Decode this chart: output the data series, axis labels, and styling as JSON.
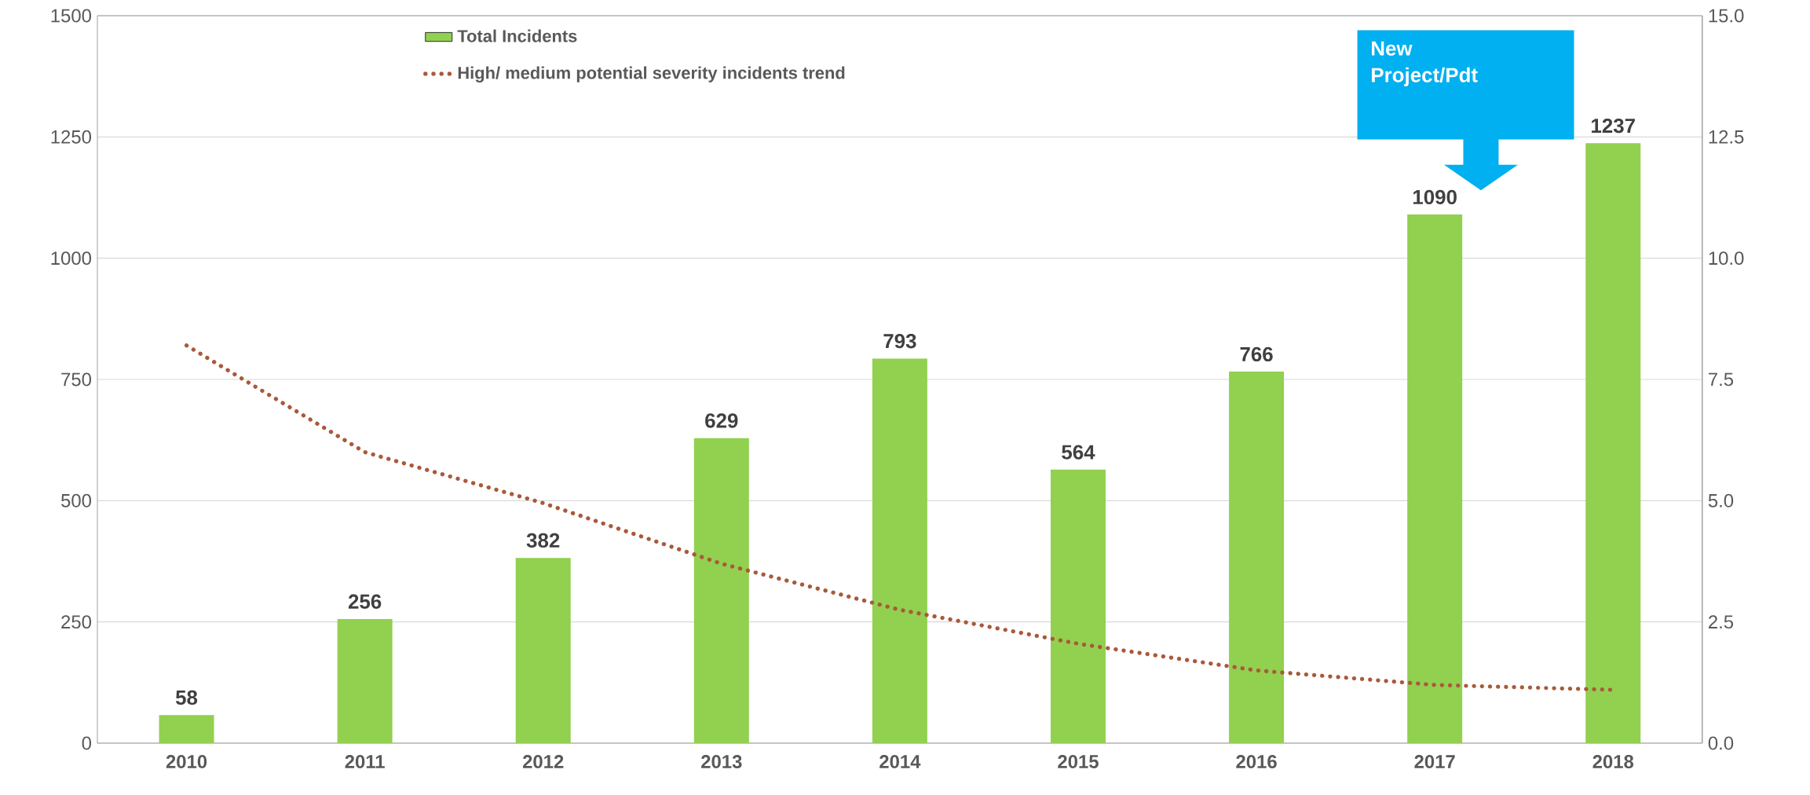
{
  "chart_data": {
    "type": "bar",
    "categories": [
      "2010",
      "2011",
      "2012",
      "2013",
      "2014",
      "2015",
      "2016",
      "2017",
      "2018"
    ],
    "series": [
      {
        "name": "Total Incidents",
        "type": "bar",
        "color": "#92d050",
        "values": [
          58,
          256,
          382,
          629,
          793,
          564,
          766,
          1090,
          1237
        ],
        "value_labels": [
          "58",
          "256",
          "382",
          "629",
          "793",
          "564",
          "766",
          "1090",
          "1237"
        ]
      },
      {
        "name": "High/ medium potential severity incidents trend",
        "type": "line",
        "axis": "y2",
        "color": "#a9593a",
        "line_style": "dotted",
        "marker": "none",
        "values": [
          8.2,
          6.0,
          4.95,
          3.7,
          2.75,
          2.05,
          1.5,
          1.2,
          1.1
        ]
      }
    ],
    "ylim": [
      0,
      1500
    ],
    "yticks": [
      0,
      250,
      500,
      750,
      1000,
      1250,
      1500
    ],
    "y2lim": [
      0,
      15
    ],
    "y2ticks": [
      {
        "value": 0,
        "label": "0.0"
      },
      {
        "value": 2.5,
        "label": "2.5"
      },
      {
        "value": 5,
        "label": "5.0"
      },
      {
        "value": 7.5,
        "label": "7.5"
      },
      {
        "value": 10,
        "label": "10.0"
      },
      {
        "value": 12.5,
        "label": "12.5"
      },
      {
        "value": 15,
        "label": "15.0"
      }
    ],
    "grid": "y",
    "legend": "top",
    "annotations": [
      "New Project/Pdt"
    ]
  }
}
